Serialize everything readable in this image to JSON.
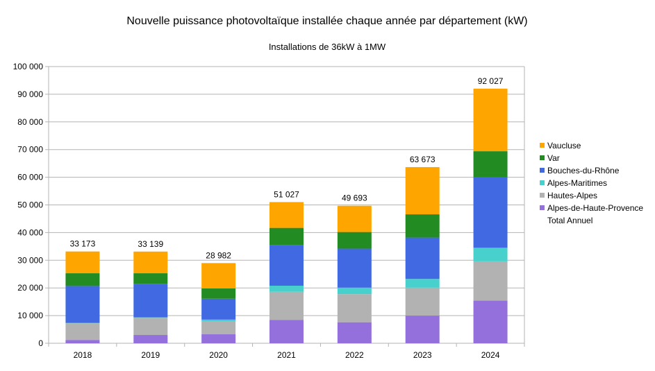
{
  "chart_data": {
    "type": "bar",
    "stacked": true,
    "title": "Nouvelle puissance photovoltaïque installée chaque année par département (kW)",
    "subtitle": "Installations de 36kW à 1MW",
    "xlabel": "",
    "ylabel": "",
    "ylim": [
      0,
      100000
    ],
    "yticks": [
      "0",
      "10 000",
      "20 000",
      "30 000",
      "40 000",
      "50 000",
      "60 000",
      "70 000",
      "80 000",
      "90 000",
      "100 000"
    ],
    "grid": true,
    "legend_position": "right",
    "categories": [
      "2018",
      "2019",
      "2020",
      "2021",
      "2022",
      "2023",
      "2024"
    ],
    "series": [
      {
        "name": "Alpes-de-Haute-Provence",
        "color": "#9370db",
        "values": [
          1200,
          3000,
          3250,
          8400,
          7600,
          10000,
          15400
        ]
      },
      {
        "name": "Hautes-Alpes",
        "color": "#b2b2b2",
        "values": [
          6000,
          6200,
          4600,
          10200,
          10150,
          10100,
          14200
        ]
      },
      {
        "name": "Alpes-Maritimes",
        "color": "#48d1cc",
        "values": [
          150,
          150,
          700,
          2200,
          2350,
          3150,
          4900
        ]
      },
      {
        "name": "Bouches-du-Rhône",
        "color": "#4169e1",
        "values": [
          13350,
          12150,
          7550,
          14700,
          14100,
          14950,
          25500
        ]
      },
      {
        "name": "Var",
        "color": "#228b22",
        "values": [
          4600,
          3800,
          3750,
          6200,
          6000,
          8400,
          9400
        ]
      },
      {
        "name": "Vaucluse",
        "color": "#ffa500",
        "values": [
          7873,
          7839,
          9132,
          9327,
          9493,
          17073,
          22627
        ]
      }
    ],
    "totals": {
      "name": "Total Annuel",
      "values": [
        33173,
        33139,
        28982,
        51027,
        49693,
        63673,
        92027
      ],
      "labels": [
        "33 173",
        "33 139",
        "28 982",
        "51 027",
        "49 693",
        "63 673",
        "92 027"
      ]
    }
  }
}
